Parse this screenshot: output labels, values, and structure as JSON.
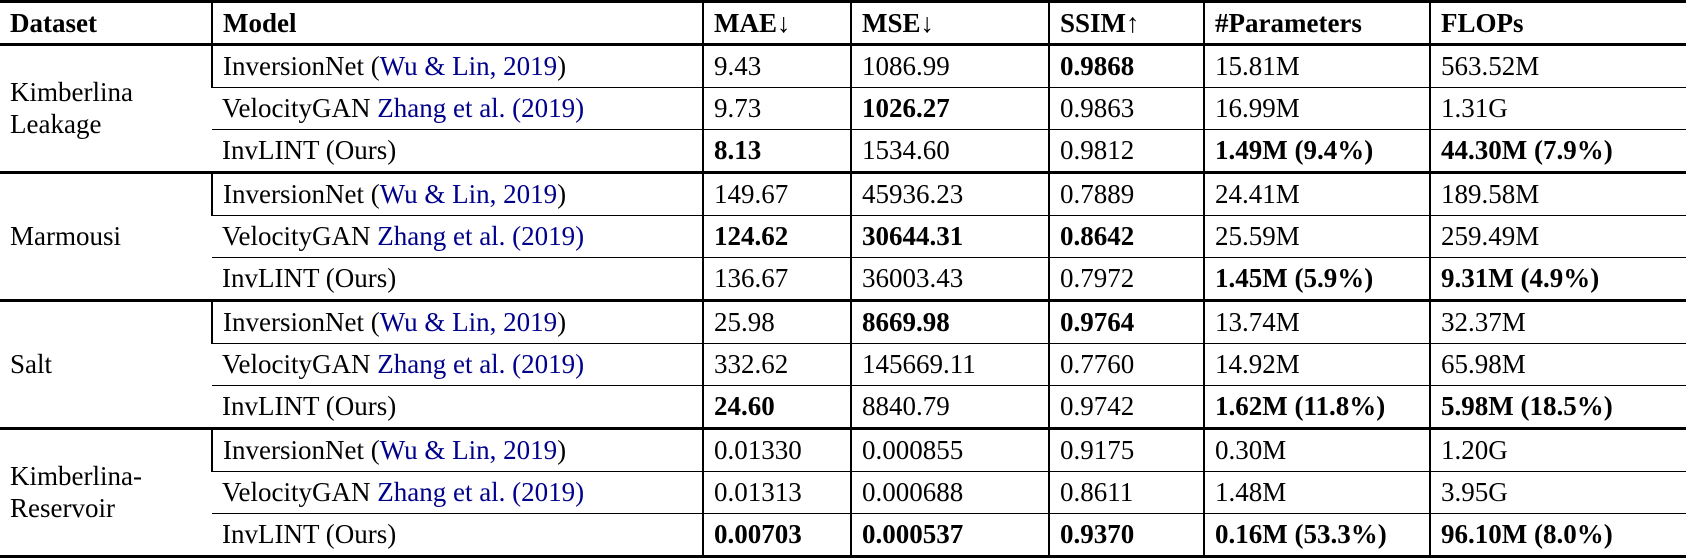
{
  "colors": {
    "citation": "#00008B",
    "text": "#000000",
    "background": "#ffffff",
    "rule": "#000000"
  },
  "table": {
    "headers": [
      "Dataset",
      "Model",
      "MAE↓",
      "MSE↓",
      "SSIM↑",
      "#Parameters",
      "FLOPs"
    ],
    "groups": [
      {
        "dataset": "Kimberlina Leakage",
        "rows": [
          {
            "model": [
              {
                "t": "InversionNet ("
              },
              {
                "t": "Wu & Lin, 2019",
                "link": true
              },
              {
                "t": ")"
              }
            ],
            "values": [
              {
                "v": "9.43"
              },
              {
                "v": "1086.99"
              },
              {
                "v": "0.9868",
                "b": true
              },
              {
                "v": "15.81M"
              },
              {
                "v": "563.52M"
              }
            ]
          },
          {
            "model": [
              {
                "t": "VelocityGAN "
              },
              {
                "t": "Zhang et al. (2019)",
                "link": true
              }
            ],
            "values": [
              {
                "v": "9.73"
              },
              {
                "v": "1026.27",
                "b": true
              },
              {
                "v": "0.9863"
              },
              {
                "v": "16.99M"
              },
              {
                "v": "1.31G"
              }
            ]
          },
          {
            "model": [
              {
                "t": "InvLINT (Ours)"
              }
            ],
            "values": [
              {
                "v": "8.13",
                "b": true
              },
              {
                "v": "1534.60"
              },
              {
                "v": "0.9812"
              },
              {
                "v": "1.49M (9.4%)",
                "b": true
              },
              {
                "v": "44.30M (7.9%)",
                "b": true
              }
            ]
          }
        ]
      },
      {
        "dataset": "Marmousi",
        "rows": [
          {
            "model": [
              {
                "t": "InversionNet ("
              },
              {
                "t": "Wu & Lin, 2019",
                "link": true
              },
              {
                "t": ")"
              }
            ],
            "values": [
              {
                "v": "149.67"
              },
              {
                "v": "45936.23"
              },
              {
                "v": "0.7889"
              },
              {
                "v": "24.41M"
              },
              {
                "v": "189.58M"
              }
            ]
          },
          {
            "model": [
              {
                "t": "VelocityGAN "
              },
              {
                "t": "Zhang et al. (2019)",
                "link": true
              }
            ],
            "values": [
              {
                "v": "124.62",
                "b": true
              },
              {
                "v": "30644.31",
                "b": true
              },
              {
                "v": "0.8642",
                "b": true
              },
              {
                "v": "25.59M"
              },
              {
                "v": "259.49M"
              }
            ]
          },
          {
            "model": [
              {
                "t": "InvLINT (Ours)"
              }
            ],
            "values": [
              {
                "v": "136.67"
              },
              {
                "v": "36003.43"
              },
              {
                "v": "0.7972"
              },
              {
                "v": "1.45M (5.9%)",
                "b": true
              },
              {
                "v": "9.31M (4.9%)",
                "b": true
              }
            ]
          }
        ]
      },
      {
        "dataset": "Salt",
        "rows": [
          {
            "model": [
              {
                "t": "InversionNet ("
              },
              {
                "t": "Wu & Lin, 2019",
                "link": true
              },
              {
                "t": ")"
              }
            ],
            "values": [
              {
                "v": "25.98"
              },
              {
                "v": "8669.98",
                "b": true
              },
              {
                "v": "0.9764",
                "b": true
              },
              {
                "v": "13.74M"
              },
              {
                "v": "32.37M"
              }
            ]
          },
          {
            "model": [
              {
                "t": "VelocityGAN "
              },
              {
                "t": "Zhang et al. (2019)",
                "link": true
              }
            ],
            "values": [
              {
                "v": "332.62"
              },
              {
                "v": "145669.11"
              },
              {
                "v": "0.7760"
              },
              {
                "v": "14.92M"
              },
              {
                "v": "65.98M"
              }
            ]
          },
          {
            "model": [
              {
                "t": "InvLINT (Ours)"
              }
            ],
            "values": [
              {
                "v": "24.60",
                "b": true
              },
              {
                "v": "8840.79"
              },
              {
                "v": "0.9742"
              },
              {
                "v": "1.62M (11.8%)",
                "b": true
              },
              {
                "v": "5.98M (18.5%)",
                "b": true
              }
            ]
          }
        ]
      },
      {
        "dataset": "Kimberlina-Reservoir",
        "rows": [
          {
            "model": [
              {
                "t": "InversionNet ("
              },
              {
                "t": "Wu & Lin, 2019",
                "link": true
              },
              {
                "t": ")"
              }
            ],
            "values": [
              {
                "v": "0.01330"
              },
              {
                "v": "0.000855"
              },
              {
                "v": "0.9175"
              },
              {
                "v": "0.30M"
              },
              {
                "v": "1.20G"
              }
            ]
          },
          {
            "model": [
              {
                "t": "VelocityGAN "
              },
              {
                "t": "Zhang et al. (2019)",
                "link": true
              }
            ],
            "values": [
              {
                "v": "0.01313"
              },
              {
                "v": "0.000688"
              },
              {
                "v": "0.8611"
              },
              {
                "v": "1.48M"
              },
              {
                "v": "3.95G"
              }
            ]
          },
          {
            "model": [
              {
                "t": "InvLINT (Ours)"
              }
            ],
            "values": [
              {
                "v": "0.00703",
                "b": true
              },
              {
                "v": "0.000537",
                "b": true
              },
              {
                "v": "0.9370",
                "b": true
              },
              {
                "v": "0.16M (53.3%)",
                "b": true
              },
              {
                "v": "96.10M (8.0%)",
                "b": true
              }
            ]
          }
        ]
      }
    ]
  }
}
